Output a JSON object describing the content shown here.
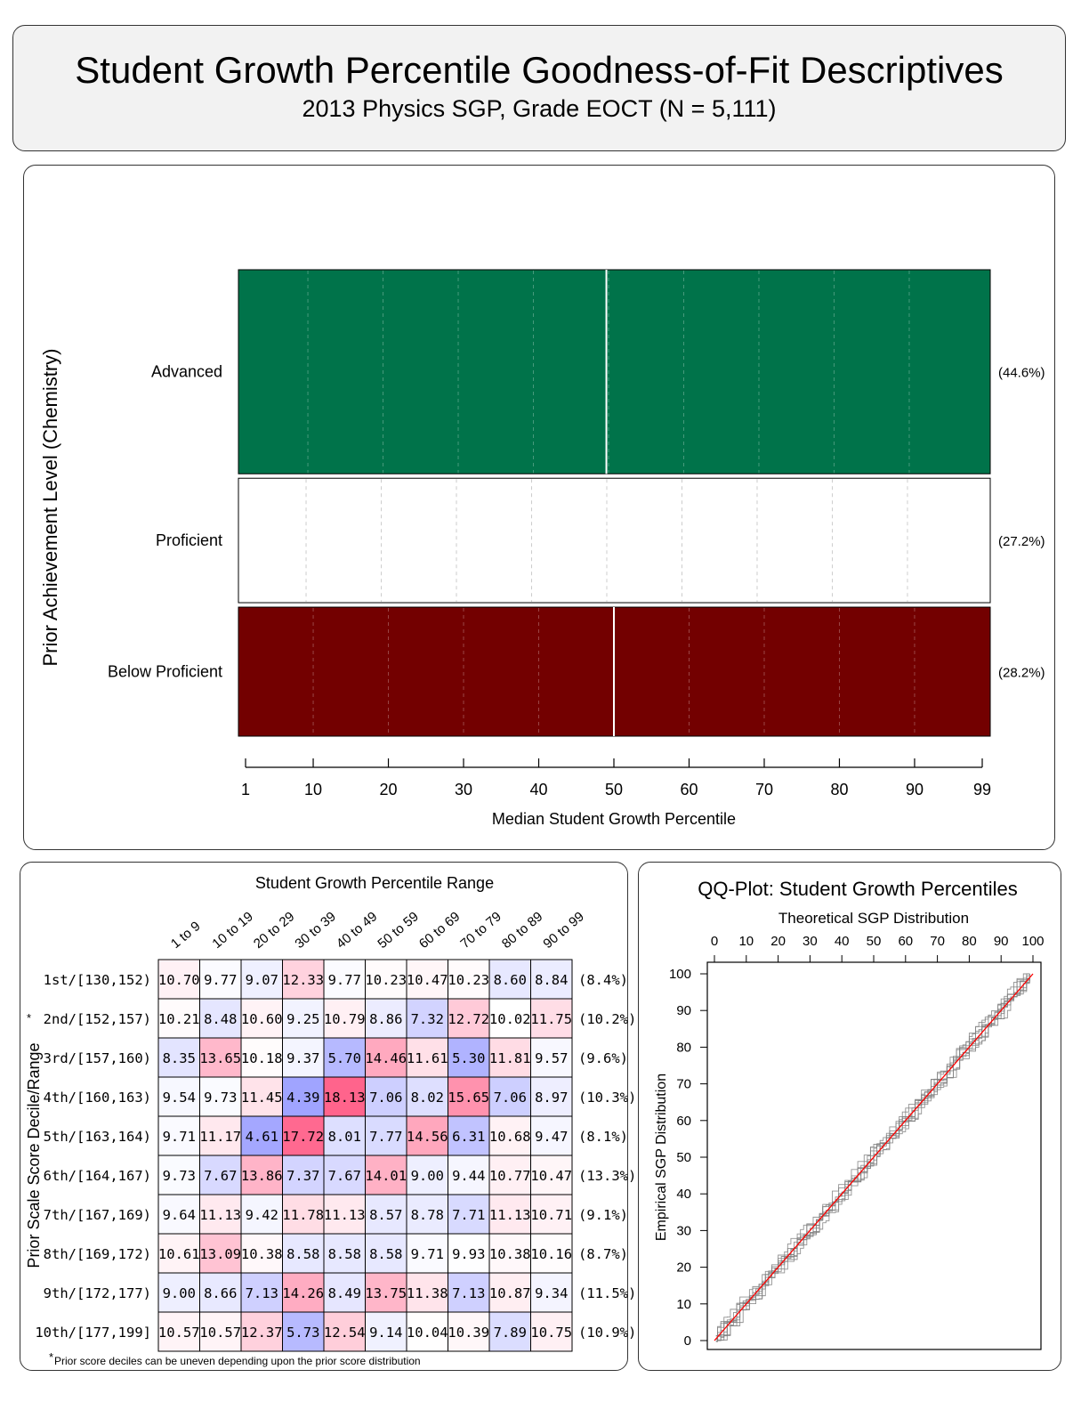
{
  "title": {
    "main": "Student Growth Percentile Goodness-of-Fit Descriptives",
    "sub": "2013 Physics SGP, Grade EOCT (N = 5,111)"
  },
  "colors": {
    "advanced": "#00734a",
    "proficient": "#ffffff",
    "below_proficient": "#730000",
    "cell_low": "#7777dd",
    "cell_high": "#dd5577",
    "qq_reference": "#ff0000",
    "qq_empirical": "#808080"
  },
  "chart_data": [
    {
      "type": "bar",
      "ylabel": "Prior Achievement Level (Chemistry)",
      "xlabel": "Median Student Growth Percentile",
      "xlim": [
        1,
        99
      ],
      "xticks": [
        "1",
        "10",
        "20",
        "30",
        "40",
        "50",
        "60",
        "70",
        "80",
        "90",
        "99"
      ],
      "xtick_values": [
        1,
        10,
        20,
        30,
        40,
        50,
        60,
        70,
        80,
        90,
        99
      ],
      "categories": [
        "Advanced",
        "Proficient",
        "Below Proficient"
      ],
      "percentages": [
        "(44.6%)",
        "(27.2%)",
        "(28.2%)"
      ],
      "shares": [
        44.6,
        27.2,
        28.2
      ],
      "medians": [
        49,
        null,
        50
      ]
    },
    {
      "type": "heatmap",
      "title": "Student Growth Percentile Range",
      "ylabel": "Prior Scale Score Decile/Range",
      "columns": [
        "1 to 9",
        "10 to 19",
        "20 to 29",
        "30 to 39",
        "40 to 49",
        "50 to 59",
        "60 to 69",
        "70 to 79",
        "80 to 89",
        "90 to 99"
      ],
      "rows": [
        "1st/[130,152)",
        "2nd/[152,157)",
        "3rd/[157,160)",
        "4th/[160,163)",
        "5th/[163,164)",
        "6th/[164,167)",
        "7th/[167,169)",
        "8th/[169,172)",
        "9th/[172,177)",
        "10th/[177,199]"
      ],
      "row_percentages": [
        "(8.4%)",
        "(10.2%)",
        "(9.6%)",
        "(10.3%)",
        "(8.1%)",
        "(13.3%)",
        "(9.1%)",
        "(8.7%)",
        "(11.5%)",
        "(10.9%)"
      ],
      "values": [
        [
          "10.70",
          "9.77",
          "9.07",
          "12.33",
          "9.77",
          "10.23",
          "10.47",
          "10.23",
          "8.60",
          "8.84"
        ],
        [
          "10.21",
          "8.48",
          "10.60",
          "9.25",
          "10.79",
          "8.86",
          "7.32",
          "12.72",
          "10.02",
          "11.75"
        ],
        [
          "8.35",
          "13.65",
          "10.18",
          "9.37",
          "5.70",
          "14.46",
          "11.61",
          "5.30",
          "11.81",
          "9.57"
        ],
        [
          "9.54",
          "9.73",
          "11.45",
          "4.39",
          "18.13",
          "7.06",
          "8.02",
          "15.65",
          "7.06",
          "8.97"
        ],
        [
          "9.71",
          "11.17",
          "4.61",
          "17.72",
          "8.01",
          "7.77",
          "14.56",
          "6.31",
          "10.68",
          "9.47"
        ],
        [
          "9.73",
          "7.67",
          "13.86",
          "7.37",
          "7.67",
          "14.01",
          "9.00",
          "9.44",
          "10.77",
          "10.47"
        ],
        [
          "9.64",
          "11.13",
          "9.42",
          "11.78",
          "11.13",
          "8.57",
          "8.78",
          "7.71",
          "11.13",
          "10.71"
        ],
        [
          "10.61",
          "13.09",
          "10.38",
          "8.58",
          "8.58",
          "8.58",
          "9.71",
          "9.93",
          "10.38",
          "10.16"
        ],
        [
          "9.00",
          "8.66",
          "7.13",
          "14.26",
          "8.49",
          "13.75",
          "11.38",
          "7.13",
          "10.87",
          "9.34"
        ],
        [
          "10.57",
          "10.57",
          "12.37",
          "5.73",
          "12.54",
          "9.14",
          "10.04",
          "10.39",
          "7.89",
          "10.75"
        ]
      ],
      "footnote": "Prior score deciles can be uneven depending upon the prior score distribution",
      "footnote_marker": "*",
      "row_marker": "*"
    },
    {
      "type": "line",
      "title": "QQ-Plot: Student Growth Percentiles",
      "xlabel": "Theoretical SGP Distribution",
      "ylabel": "Empirical SGP Distribution",
      "xlim": [
        0,
        100
      ],
      "ylim": [
        0,
        100
      ],
      "xticks": [
        "0",
        "10",
        "20",
        "30",
        "40",
        "50",
        "60",
        "70",
        "80",
        "90",
        "100"
      ],
      "yticks": [
        "0",
        "10",
        "20",
        "30",
        "40",
        "50",
        "60",
        "70",
        "80",
        "90",
        "100"
      ],
      "reference_line": [
        [
          0,
          0
        ],
        [
          100,
          100
        ]
      ],
      "empirical_series_count": 10
    }
  ]
}
